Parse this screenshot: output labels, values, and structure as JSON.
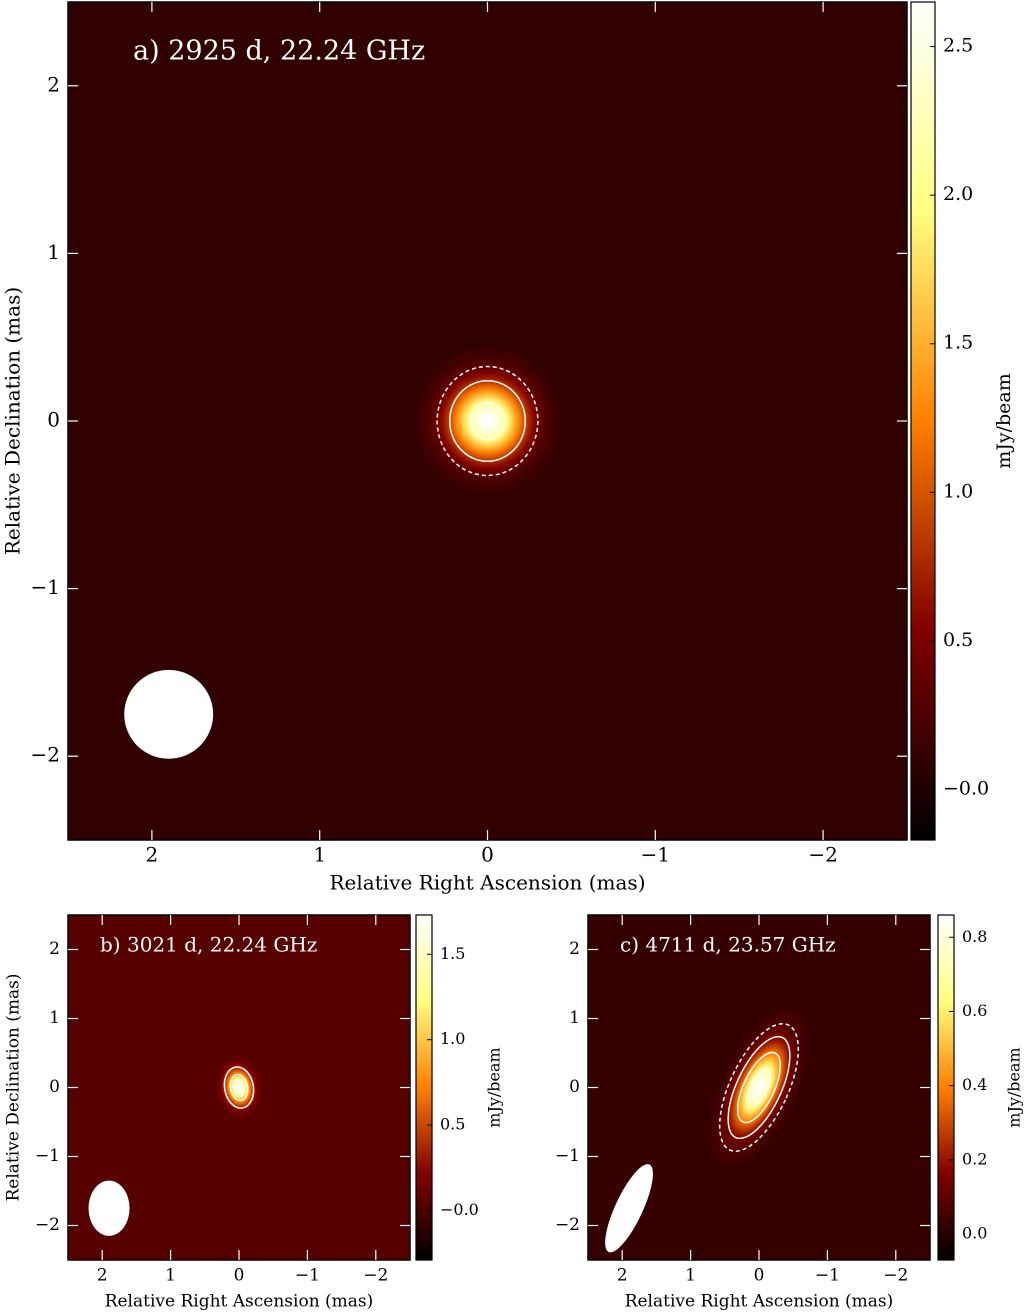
{
  "chart_data": [
    {
      "type": "image",
      "title": "a) 2925 d, 22.24 GHz",
      "xlabel": "Relative Right Ascension (mas)",
      "ylabel": "Relative Declination (mas)",
      "colorbar_label": "mJy/beam",
      "colormap": "afmhot",
      "xlim": [
        2.5,
        -2.5
      ],
      "ylim": [
        -2.5,
        2.5
      ],
      "clim": [
        -0.17,
        2.65
      ],
      "background": 0.1,
      "xticks": [
        2,
        1,
        0,
        {
          "value": -1,
          "label": "−1"
        },
        {
          "value": -2,
          "label": "−2"
        }
      ],
      "yticks": [
        {
          "value": -2,
          "label": "−2"
        },
        {
          "value": -1,
          "label": "−1"
        },
        0,
        1,
        2
      ],
      "cticks": [
        {
          "value": 0,
          "label": "−0.0"
        },
        0.5,
        {
          "value": 1,
          "label": "1.0"
        },
        1.5,
        {
          "value": 2,
          "label": "2.0"
        },
        2.5
      ],
      "source": {
        "x": 0,
        "y": 0,
        "width": 0.9,
        "height": 0.9,
        "angle": 0,
        "peak": 2.65
      },
      "contours": [
        {
          "width": 0.6,
          "height": 0.65,
          "dashed": true
        },
        {
          "width": 0.45,
          "height": 0.48,
          "dashed": false
        },
        {
          "width": 0.2,
          "height": 0.22,
          "dashed": false
        }
      ],
      "beam": {
        "x": 1.9,
        "y": -1.75,
        "width": 0.53,
        "height": 0.53,
        "angle": 0
      }
    },
    {
      "type": "image",
      "title": "b) 3021 d, 22.24 GHz",
      "xlabel": "Relative Right Ascension (mas)",
      "ylabel": "Relative Declination (mas)",
      "colorbar_label": "mJy/beam",
      "colormap": "afmhot",
      "xlim": [
        2.5,
        -2.5
      ],
      "ylim": [
        -2.5,
        2.5
      ],
      "clim": [
        -0.29,
        1.73
      ],
      "background": 0.05,
      "xticks": [
        2,
        1,
        0,
        {
          "value": -1,
          "label": "−1"
        },
        {
          "value": -2,
          "label": "−2"
        }
      ],
      "yticks": [
        {
          "value": -2,
          "label": "−2"
        },
        {
          "value": -1,
          "label": "−1"
        },
        0,
        1,
        2
      ],
      "cticks": [
        {
          "value": 0,
          "label": "−0.0"
        },
        0.5,
        {
          "value": 1,
          "label": "1.0"
        },
        1.5
      ],
      "source": {
        "x": 0,
        "y": 0,
        "width": 0.7,
        "height": 0.95,
        "angle": -10,
        "peak": 1.73
      },
      "contours": [
        {
          "width": 0.42,
          "height": 0.6,
          "dashed": false
        },
        {
          "width": 0.25,
          "height": 0.38,
          "dashed": false
        },
        {
          "width": 0.15,
          "height": 0.25,
          "dashed": true
        }
      ],
      "beam": {
        "x": 1.9,
        "y": -1.75,
        "width": 0.6,
        "height": 0.8,
        "angle": 0
      }
    },
    {
      "type": "image",
      "title": "c) 4711 d, 23.57 GHz",
      "xlabel": "Relative Right Ascension (mas)",
      "colorbar_label": "mJy/beam",
      "colormap": "afmhot",
      "xlim": [
        2.5,
        -2.5
      ],
      "ylim": [
        -2.5,
        2.5
      ],
      "clim": [
        -0.07,
        0.86
      ],
      "background": 0.03,
      "xticks": [
        2,
        1,
        0,
        {
          "value": -1,
          "label": "−1"
        },
        {
          "value": -2,
          "label": "−2"
        }
      ],
      "yticks": [
        {
          "value": -2,
          "label": "−2"
        },
        {
          "value": -1,
          "label": "−1"
        },
        0,
        1,
        2
      ],
      "cticks": [
        {
          "value": 0,
          "label": "0.0"
        },
        0.2,
        0.4,
        0.6,
        0.8
      ],
      "source": {
        "x": 0,
        "y": 0,
        "width": 1.1,
        "height": 2.5,
        "angle": 25,
        "peak": 0.86
      },
      "contours": [
        {
          "width": 0.85,
          "height": 2.0,
          "dashed": true
        },
        {
          "width": 0.65,
          "height": 1.6,
          "dashed": false
        },
        {
          "width": 0.45,
          "height": 1.1,
          "dashed": false
        },
        {
          "width": 0.25,
          "height": 0.55,
          "dashed": false
        }
      ],
      "beam": {
        "x": 1.9,
        "y": -1.75,
        "width": 0.4,
        "height": 1.4,
        "angle": 25
      }
    }
  ]
}
